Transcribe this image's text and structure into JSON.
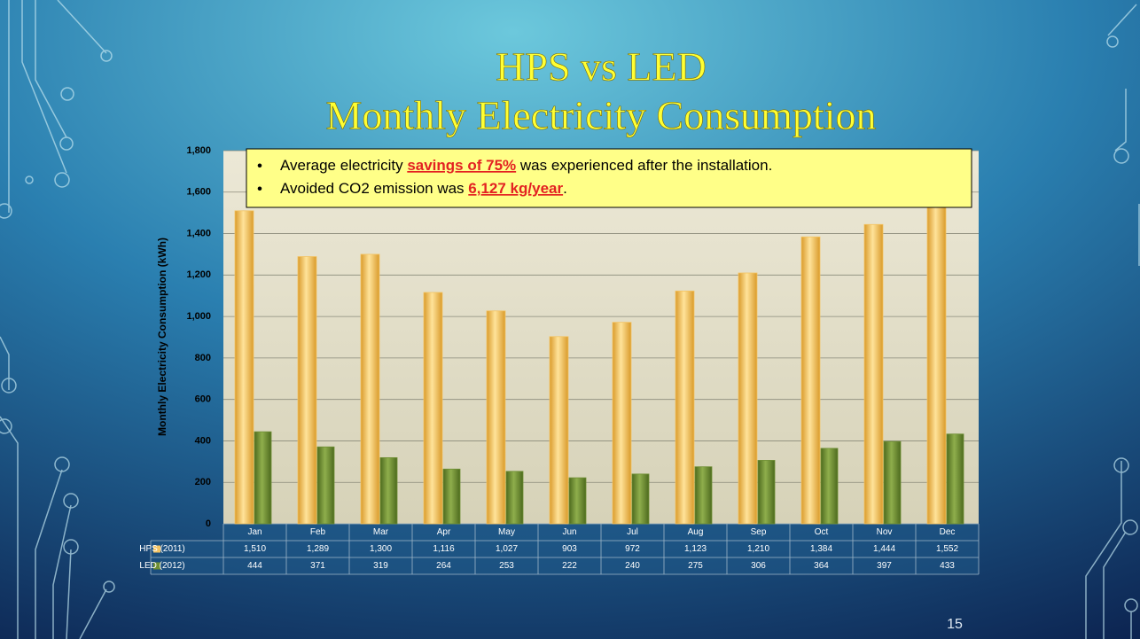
{
  "chart_data": {
    "type": "bar",
    "title": [
      "HPS vs LED",
      "Monthly Electricity Consumption"
    ],
    "y_label": "Monthly Electricity Consumption (kWh)",
    "categories": [
      "Jan",
      "Feb",
      "Mar",
      "Apr",
      "May",
      "Jun",
      "Jul",
      "Aug",
      "Sep",
      "Oct",
      "Nov",
      "Dec"
    ],
    "series": [
      {
        "name": "HPS (2011)",
        "color": "#f4c463",
        "values": [
          1510,
          1289,
          1300,
          1116,
          1027,
          903,
          972,
          1123,
          1210,
          1384,
          1444,
          1552
        ],
        "value_labels": [
          "1,510",
          "1,289",
          "1,300",
          "1,116",
          "1,027",
          "903",
          "972",
          "1,123",
          "1,210",
          "1,384",
          "1,444",
          "1,552"
        ]
      },
      {
        "name": "LED (2012)",
        "color": "#6f8f34",
        "values": [
          444,
          371,
          319,
          264,
          253,
          222,
          240,
          275,
          306,
          364,
          397,
          433
        ]
      }
    ],
    "ylim": [
      0,
      1800
    ],
    "yticks": [
      0,
      200,
      400,
      600,
      800,
      {
        "value": 1000,
        "label": "1,000"
      },
      {
        "value": 1200,
        "label": "1,200"
      },
      {
        "value": 1400,
        "label": "1,400"
      },
      {
        "value": 1600,
        "label": "1,600"
      },
      {
        "value": 1800,
        "label": "1,800"
      }
    ],
    "grid": true,
    "annotations": [
      {
        "before": "Average electricity ",
        "highlight": "savings of 75%",
        "after": " was experienced after the installation."
      },
      {
        "before": "Avoided CO2 emission was ",
        "highlight": "6,127 kg/year",
        "after": "."
      }
    ],
    "page_number": "15"
  }
}
